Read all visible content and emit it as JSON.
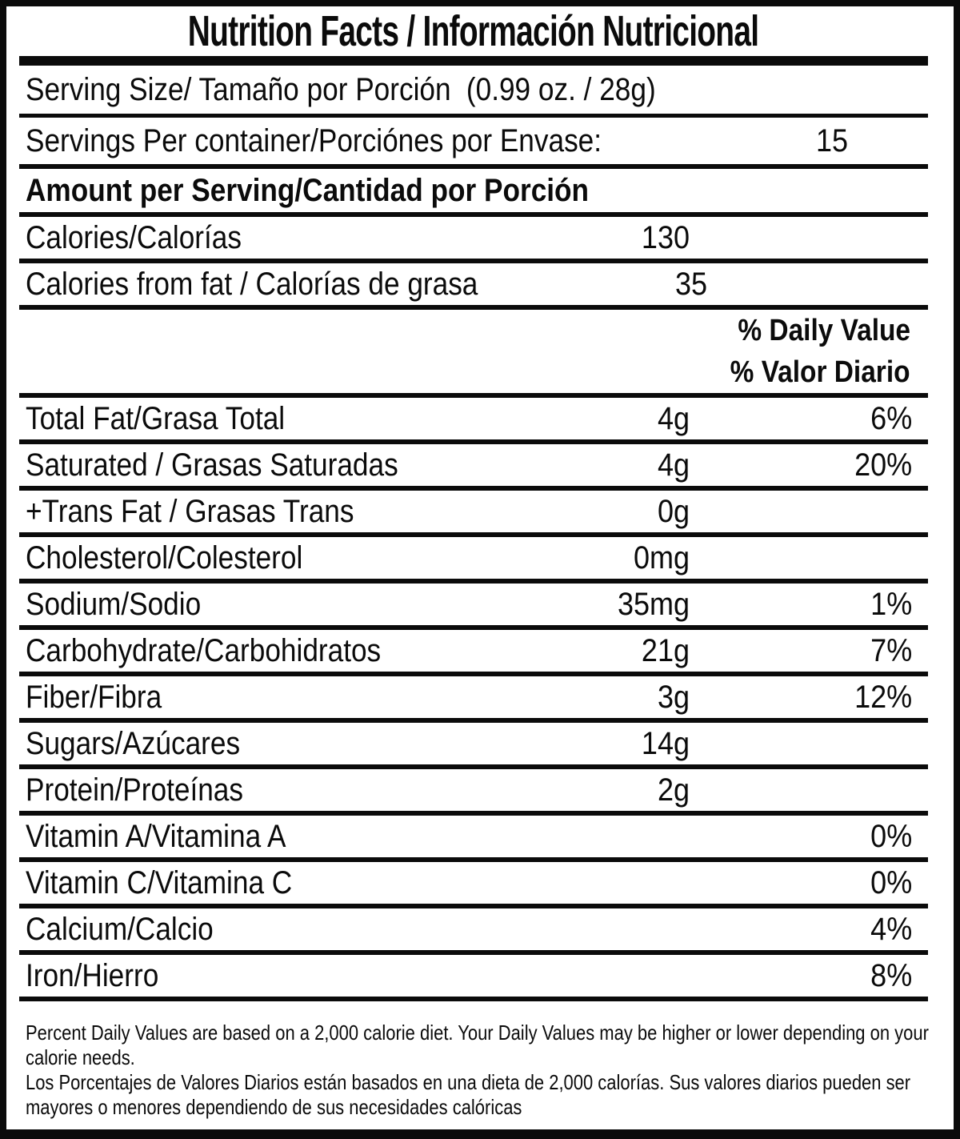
{
  "colors": {
    "ink": "#0b0b0b",
    "background": "#ffffff"
  },
  "header": {
    "title": "Nutrition Facts / Información Nutricional"
  },
  "serving": {
    "size_label": "Serving Size/ Tamaño por Porción",
    "size_value": "(0.99 oz. / 28g)",
    "per_container_label": "Servings Per container/Porciónes por Envase:",
    "per_container_value": "15"
  },
  "amount_heading": "Amount per Serving/Cantidad por Porción",
  "calorie_rows": [
    {
      "label": "Calories/Calorías",
      "amount": "130",
      "pct": ""
    },
    {
      "label": "Calories from fat / Calorías de grasa",
      "amount": "35",
      "pct": ""
    }
  ],
  "daily_value_header": {
    "line1": "% Daily Value",
    "line2": "% Valor Diario"
  },
  "nutrients": [
    {
      "label": "Total Fat/Grasa Total",
      "amount": "4g",
      "pct": "6%"
    },
    {
      "label": "Saturated / Grasas Saturadas",
      "amount": "4g",
      "pct": "20%"
    },
    {
      "label": "+Trans Fat / Grasas Trans",
      "amount": "0g",
      "pct": ""
    },
    {
      "label": "Cholesterol/Colesterol",
      "amount": "0mg",
      "pct": ""
    },
    {
      "label": "Sodium/Sodio",
      "amount": "35mg",
      "pct": "1%"
    },
    {
      "label": "Carbohydrate/Carbohidratos",
      "amount": "21g",
      "pct": "7%"
    },
    {
      "label": "Fiber/Fibra",
      "amount": "3g",
      "pct": "12%"
    },
    {
      "label": "Sugars/Azúcares",
      "amount": "14g",
      "pct": ""
    },
    {
      "label": "Protein/Proteínas",
      "amount": "2g",
      "pct": ""
    },
    {
      "label": "Vitamin A/Vitamina A",
      "amount": "",
      "pct": "0%"
    },
    {
      "label": "Vitamin C/Vitamina C",
      "amount": "",
      "pct": "0%"
    },
    {
      "label": "Calcium/Calcio",
      "amount": "",
      "pct": "4%"
    },
    {
      "label": "Iron/Hierro",
      "amount": "",
      "pct": "8%"
    }
  ],
  "footnotes": [
    "Percent Daily Values are based on a 2,000 calorie diet. Your Daily Values may be higher or lower depending on your calorie needs.",
    "Los Porcentajes de Valores Diarios están basados en una dieta de 2,000 calorías. Sus valores diarios pueden ser mayores o menores dependiendo de sus necesidades calóricas"
  ]
}
